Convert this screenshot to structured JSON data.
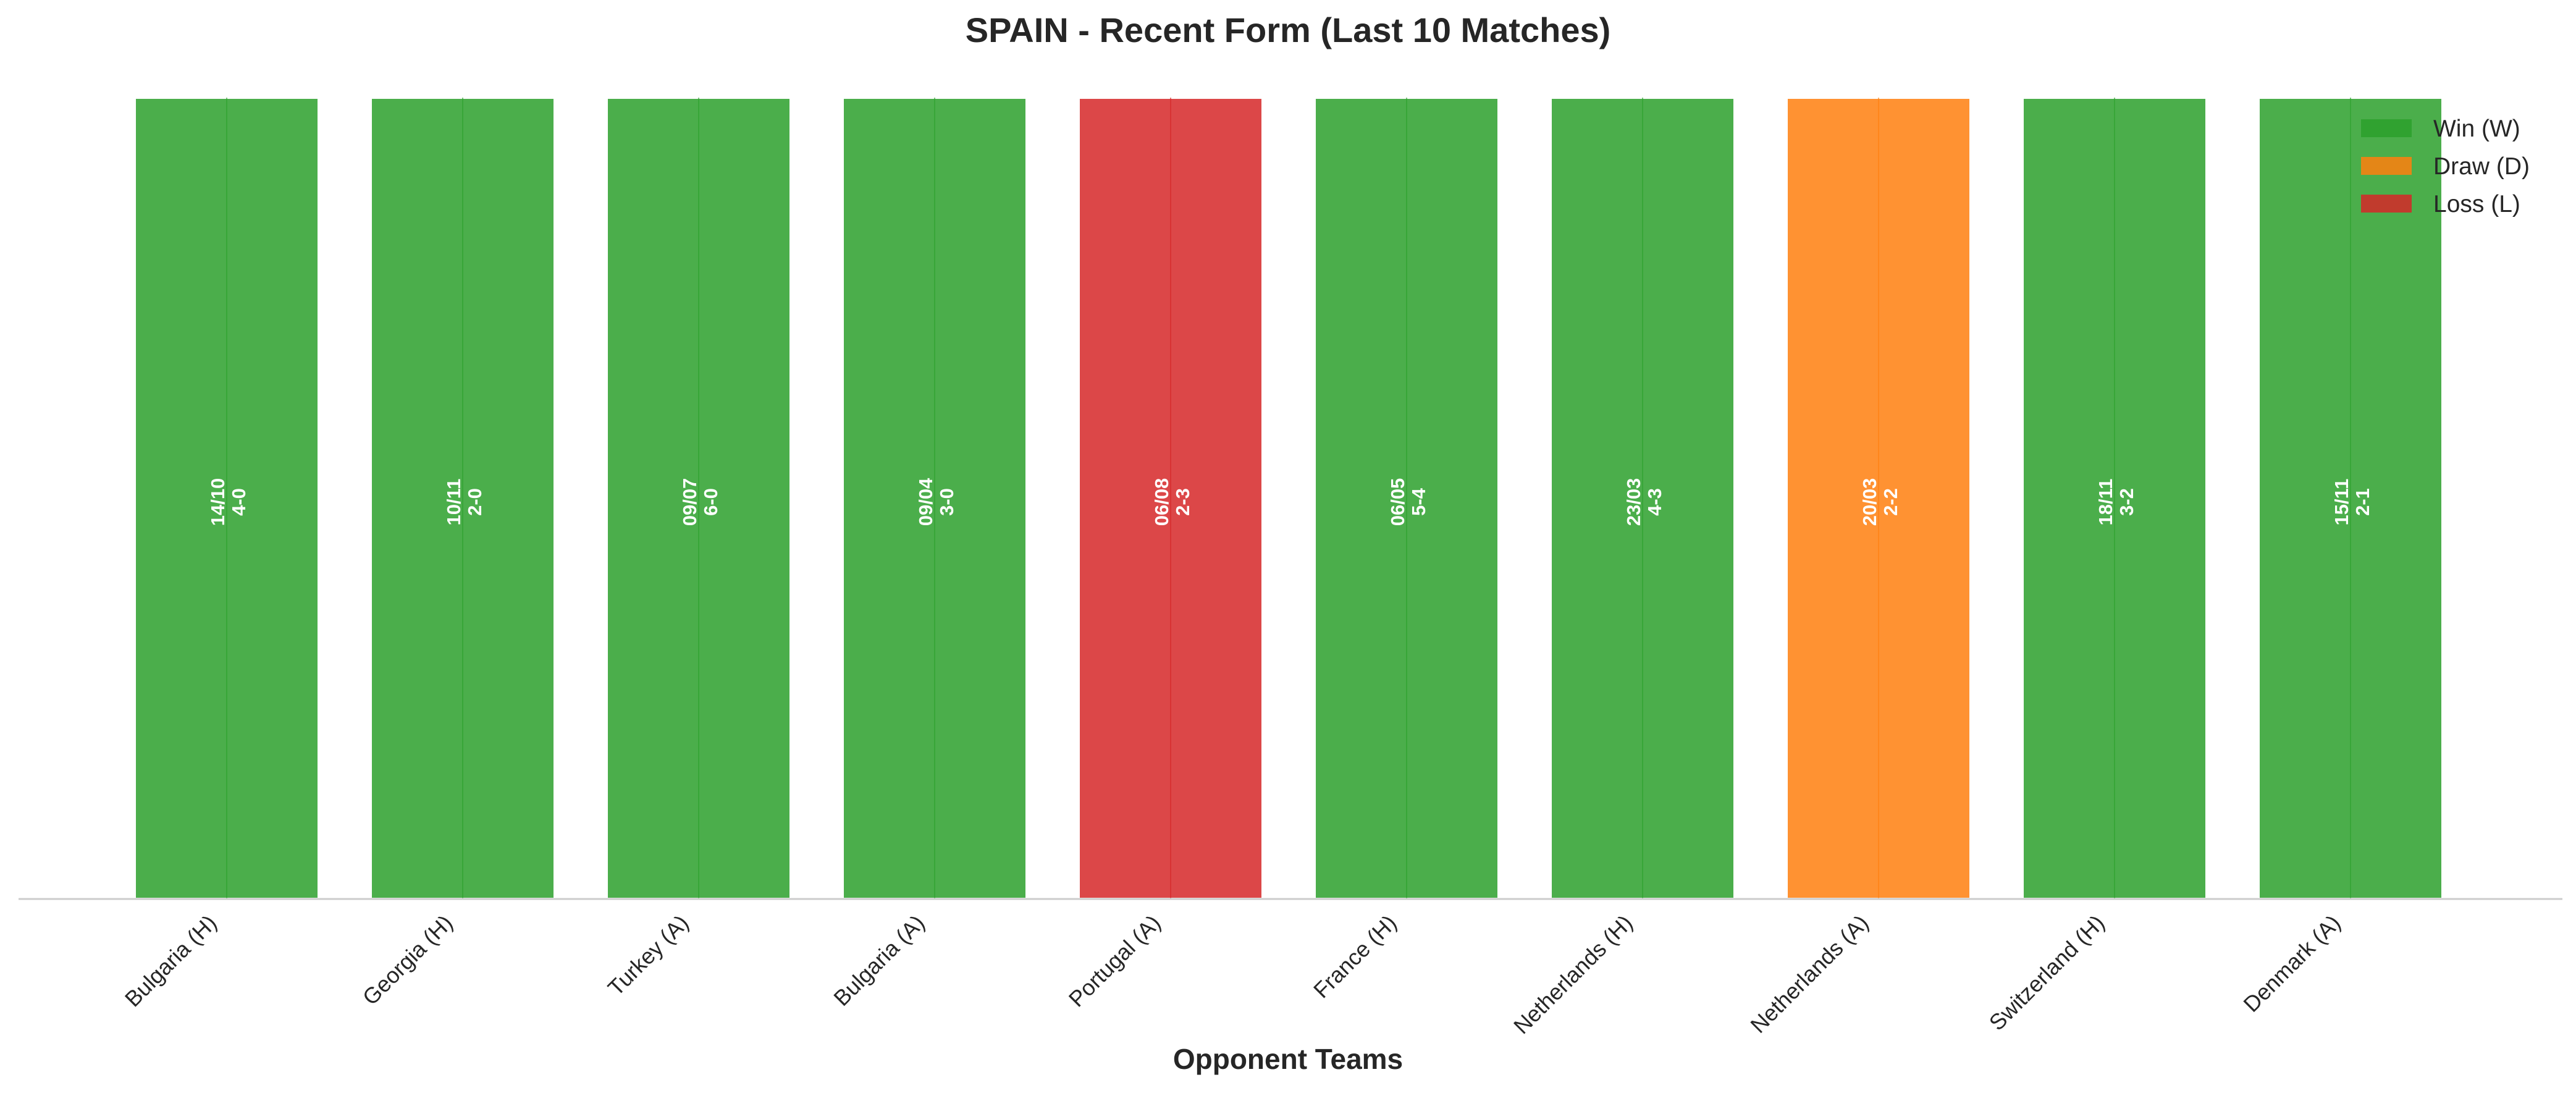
{
  "chart_data": {
    "type": "bar",
    "title": "SPAIN - Recent Form (Last 10 Matches)",
    "xlabel": "Opponent Teams",
    "ylabel": "",
    "grid": false,
    "legend_position": "top-right",
    "categories": [
      "Bulgaria (H)",
      "Georgia (H)",
      "Turkey (A)",
      "Bulgaria (A)",
      "Portugal (A)",
      "France (H)",
      "Netherlands (H)",
      "Netherlands (A)",
      "Switzerland (H)",
      "Denmark (A)"
    ],
    "values": [
      1,
      1,
      1,
      1,
      1,
      1,
      1,
      1,
      1,
      1
    ],
    "ylim": [
      0,
      1
    ],
    "matches": [
      {
        "opponent": "Bulgaria (H)",
        "date": "14/10",
        "score": "4-0",
        "result": "W"
      },
      {
        "opponent": "Georgia (H)",
        "date": "10/11",
        "score": "2-0",
        "result": "W"
      },
      {
        "opponent": "Turkey (A)",
        "date": "09/07",
        "score": "6-0",
        "result": "W"
      },
      {
        "opponent": "Bulgaria (A)",
        "date": "09/04",
        "score": "3-0",
        "result": "W"
      },
      {
        "opponent": "Portugal (A)",
        "date": "06/08",
        "score": "2-3",
        "result": "L"
      },
      {
        "opponent": "France (H)",
        "date": "06/05",
        "score": "5-4",
        "result": "W"
      },
      {
        "opponent": "Netherlands (H)",
        "date": "23/03",
        "score": "4-3",
        "result": "W"
      },
      {
        "opponent": "Netherlands (A)",
        "date": "20/03",
        "score": "2-2",
        "result": "D"
      },
      {
        "opponent": "Switzerland (H)",
        "date": "18/11",
        "score": "3-2",
        "result": "W"
      },
      {
        "opponent": "Denmark (A)",
        "date": "15/11",
        "score": "2-1",
        "result": "W"
      }
    ],
    "legend": [
      {
        "key": "W",
        "label": "Win (W)",
        "color": "#2ca02c"
      },
      {
        "key": "D",
        "label": "Draw (D)",
        "color": "#ff7f0e"
      },
      {
        "key": "L",
        "label": "Loss (L)",
        "color": "#d62728"
      }
    ],
    "colors": {
      "W": "#2ca02c",
      "D": "#ff7f0e",
      "L": "#d62728",
      "axis": "#cccccc",
      "text": "#262626",
      "bar_label": "#ffffff"
    }
  }
}
